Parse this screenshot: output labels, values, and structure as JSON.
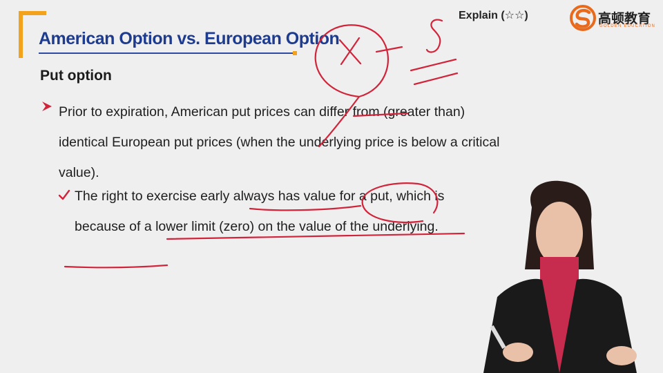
{
  "slide": {
    "title": "American Option vs. European Option",
    "explain_label": "Explain (☆☆)",
    "logo_cn": "高顿教育",
    "logo_en": "GOLDEN EDUCATION",
    "subtitle": "Put option",
    "bullet1": "Prior to expiration, American put prices can differ from (greater than) identical European put prices (when the underlying price is below a critical value).",
    "bullet2": "The right to exercise early always has value for a put, which is because of a lower limit (zero) on the value of the underlying."
  },
  "colors": {
    "title": "#1d3b8f",
    "accent_orange": "#f3a21e",
    "ink_red": "#d0243a",
    "text": "#1e1e1e",
    "background": "#efefef"
  },
  "icons": {
    "bullet1": "arrowhead-bullet-icon",
    "bullet2": "checkmark-icon",
    "logo": "golden-education-logo-icon"
  }
}
